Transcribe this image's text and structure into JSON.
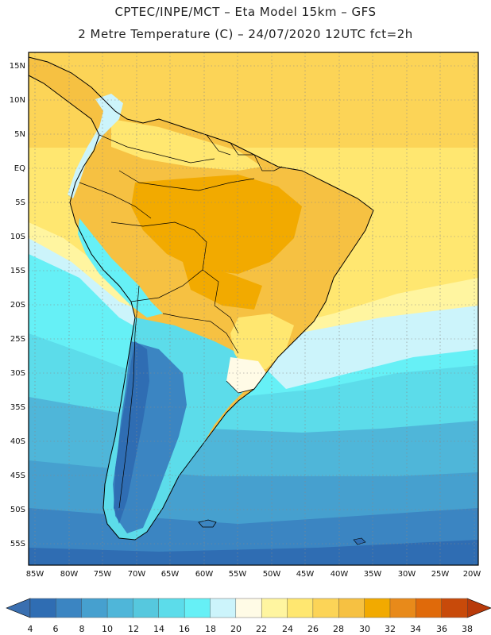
{
  "header": {
    "title_line1": "CPTEC/INPE/MCT –  Eta Model 15km – GFS",
    "title_line2": "2 Metre Temperature (C) – 24/07/2020 12UTC fct=2h"
  },
  "axes": {
    "lat_labels": [
      "15N",
      "10N",
      "5N",
      "EQ",
      "5S",
      "10S",
      "15S",
      "20S",
      "25S",
      "30S",
      "35S",
      "40S",
      "45S",
      "50S",
      "55S"
    ],
    "lon_labels": [
      "85W",
      "80W",
      "75W",
      "70W",
      "65W",
      "60W",
      "55W",
      "50W",
      "45W",
      "40W",
      "35W",
      "30W",
      "25W",
      "20W"
    ]
  },
  "colorbar": {
    "labels": [
      "4",
      "6",
      "8",
      "10",
      "12",
      "14",
      "16",
      "18",
      "20",
      "22",
      "24",
      "26",
      "28",
      "30",
      "32",
      "34",
      "36",
      "38"
    ],
    "colors": [
      "#2f6db3",
      "#3b85c2",
      "#46a0cf",
      "#4fb6d9",
      "#56c8de",
      "#5cdcea",
      "#66f0f6",
      "#ccf4fb",
      "#fffbe6",
      "#fff5a0",
      "#ffe770",
      "#fcd457",
      "#f6c142",
      "#f2aa00",
      "#e88a1a",
      "#e06a0a",
      "#c84a0a"
    ],
    "left_cap_color": "#3a6fb0",
    "right_cap_color": "#b83a0a"
  },
  "colors": {
    "ocean_south": "#2f6db3",
    "ocean_mid": "#4fb6d9",
    "ocean_tropic": "#fff5a0",
    "land_warm": "#f6c142",
    "border_line": "#000000"
  }
}
